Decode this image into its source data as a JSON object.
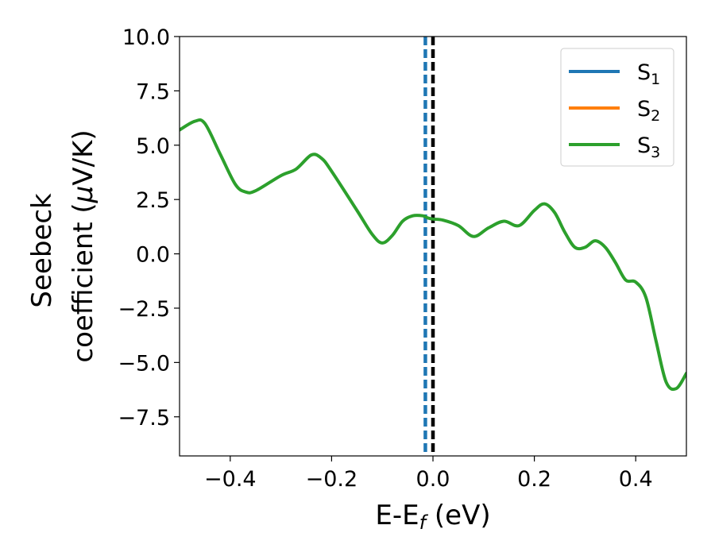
{
  "chart_data": {
    "type": "line",
    "xlabel": {
      "main": "E-E",
      "sub": "f",
      "unit": " (eV)"
    },
    "ylabel": {
      "line1": "Seebeck",
      "line2_pre": "coefficient  (",
      "line2_greek": "μ",
      "line2_post": "V/K)"
    },
    "xlim": [
      -0.5,
      0.5
    ],
    "ylim": [
      -9.3,
      10.0
    ],
    "xticks": [
      {
        "value": -0.4,
        "label": "−0.4"
      },
      {
        "value": -0.2,
        "label": "−0.2"
      },
      {
        "value": 0.0,
        "label": "0.0"
      },
      {
        "value": 0.2,
        "label": "0.2"
      },
      {
        "value": 0.4,
        "label": "0.4"
      }
    ],
    "yticks": [
      {
        "value": -7.5,
        "label": "−7.5"
      },
      {
        "value": -5.0,
        "label": "−5.0"
      },
      {
        "value": -2.5,
        "label": "−2.5"
      },
      {
        "value": 0.0,
        "label": "0.0"
      },
      {
        "value": 2.5,
        "label": "2.5"
      },
      {
        "value": 5.0,
        "label": "5.0"
      },
      {
        "value": 7.5,
        "label": "7.5"
      },
      {
        "value": 10.0,
        "label": "10.0"
      }
    ],
    "legend": {
      "placement": "top-right",
      "entries": [
        {
          "base": "S",
          "sub": "1",
          "color": "#1f77b4"
        },
        {
          "base": "S",
          "sub": "2",
          "color": "#ff7f0e"
        },
        {
          "base": "S",
          "sub": "3",
          "color": "#2ca02c"
        }
      ]
    },
    "vertical_lines": [
      {
        "x": -0.015,
        "style": "dashed",
        "color": "#1f77b4"
      },
      {
        "x": 0.0,
        "style": "dashed",
        "color": "#000000"
      }
    ],
    "series": [
      {
        "color": "#2ca02c",
        "x": [
          -0.5,
          -0.47,
          -0.45,
          -0.42,
          -0.39,
          -0.37,
          -0.35,
          -0.3,
          -0.27,
          -0.24,
          -0.22,
          -0.2,
          -0.15,
          -0.12,
          -0.1,
          -0.08,
          -0.06,
          -0.04,
          -0.02,
          -0.01,
          0.0,
          0.02,
          0.05,
          0.08,
          0.11,
          0.14,
          0.17,
          0.2,
          0.22,
          0.24,
          0.26,
          0.28,
          0.3,
          0.32,
          0.34,
          0.36,
          0.38,
          0.4,
          0.42,
          0.44,
          0.46,
          0.48,
          0.5
        ],
        "y": [
          5.7,
          6.1,
          6.0,
          4.6,
          3.2,
          2.85,
          2.9,
          3.6,
          3.9,
          4.55,
          4.4,
          3.8,
          2.0,
          0.9,
          0.5,
          0.85,
          1.5,
          1.75,
          1.75,
          1.65,
          1.6,
          1.55,
          1.3,
          0.8,
          1.2,
          1.5,
          1.3,
          2.0,
          2.3,
          1.9,
          1.0,
          0.3,
          0.3,
          0.6,
          0.3,
          -0.4,
          -1.2,
          -1.3,
          -2.0,
          -4.0,
          -5.9,
          -6.2,
          -5.5
        ]
      }
    ]
  }
}
